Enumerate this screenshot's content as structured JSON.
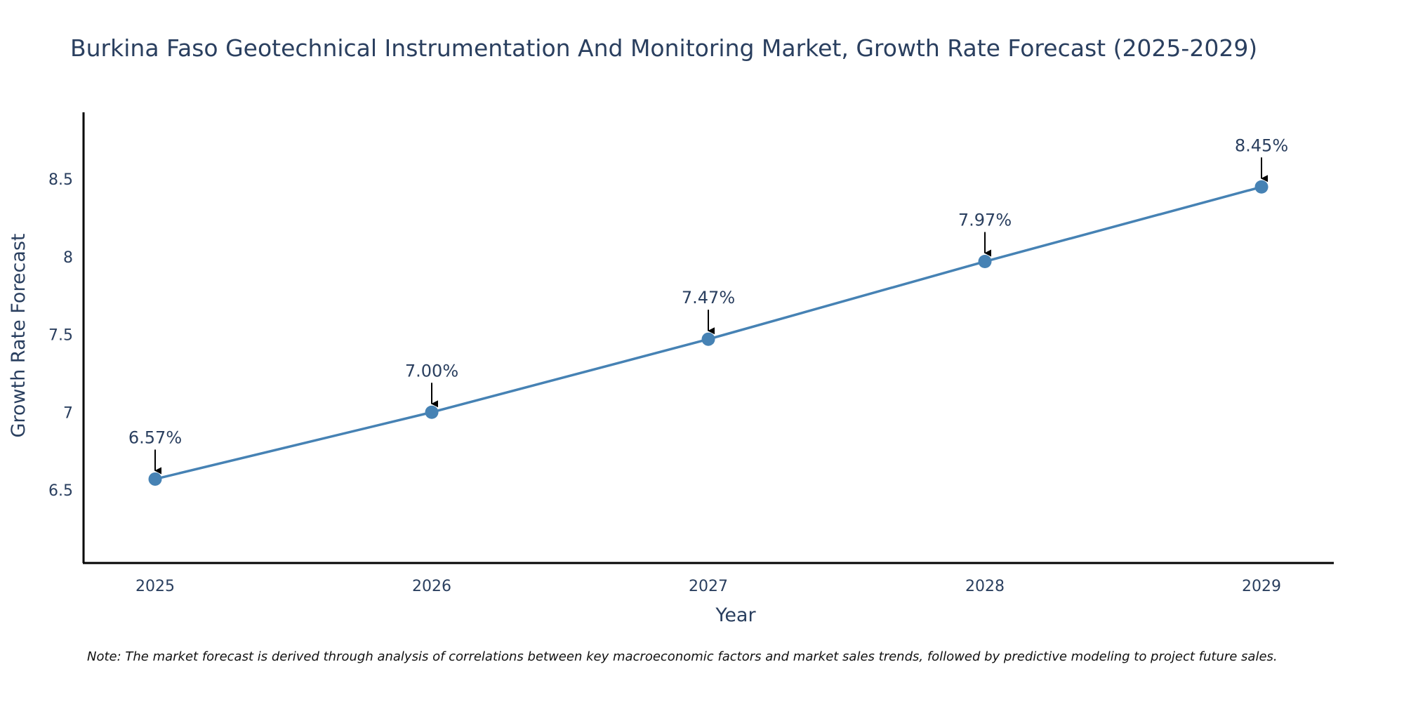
{
  "chart_data": {
    "type": "line",
    "title": "Burkina Faso Geotechnical Instrumentation And Monitoring Market, Growth Rate Forecast (2025-2029)",
    "xlabel": "Year",
    "ylabel": "Growth Rate Forecast",
    "categories": [
      "2025",
      "2026",
      "2027",
      "2028",
      "2029"
    ],
    "series": [
      {
        "name": "Growth Rate Forecast",
        "values": [
          6.57,
          7.0,
          7.47,
          7.97,
          8.45
        ],
        "labels": [
          "6.57%",
          "7.00%",
          "7.47%",
          "7.97%",
          "8.45%"
        ],
        "color": "#4682b4"
      }
    ],
    "ylim": [
      6.03,
      8.93
    ],
    "yticks": [
      6.5,
      7,
      7.5,
      8,
      8.5
    ],
    "ytick_labels": [
      "6.5",
      "7",
      "7.5",
      "8",
      "8.5"
    ],
    "grid": false,
    "note": "Note: The market forecast is derived through analysis of correlations between key macroeconomic factors and market sales trends, followed by predictive modeling to project future sales."
  }
}
